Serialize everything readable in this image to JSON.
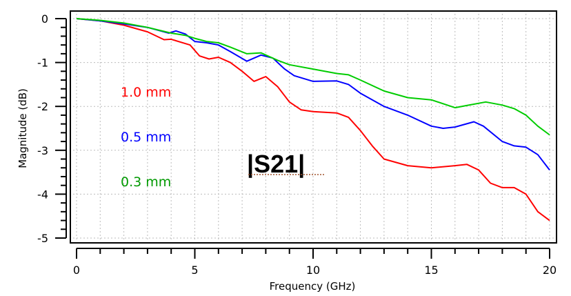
{
  "chart_data": {
    "type": "line",
    "title": "",
    "xlabel": "Frequency (GHz)",
    "ylabel": "Magnitude (dB)",
    "xlim": [
      0,
      20
    ],
    "ylim": [
      -5,
      0
    ],
    "xticks": [
      "0",
      "5",
      "10",
      "15",
      "20"
    ],
    "yticks": [
      "0",
      "-1",
      "-2",
      "-3",
      "-4",
      "-5"
    ],
    "grid": true,
    "annotation": "|S21|",
    "series": [
      {
        "name": "1.0 mm",
        "color": "#ff0000",
        "x": [
          0,
          1,
          2,
          3,
          3.7,
          4,
          4.8,
          5.2,
          5.6,
          6,
          6.5,
          7,
          7.5,
          8,
          8.5,
          9,
          9.5,
          10,
          11,
          11.5,
          12,
          12.5,
          13,
          14,
          15,
          16,
          16.5,
          17,
          17.5,
          18,
          18.5,
          19,
          19.5,
          20
        ],
        "y": [
          0,
          -0.05,
          -0.15,
          -0.3,
          -0.48,
          -0.47,
          -0.6,
          -0.85,
          -0.92,
          -0.88,
          -1.0,
          -1.2,
          -1.43,
          -1.32,
          -1.55,
          -1.9,
          -2.08,
          -2.12,
          -2.15,
          -2.25,
          -2.55,
          -2.9,
          -3.2,
          -3.35,
          -3.4,
          -3.35,
          -3.32,
          -3.45,
          -3.75,
          -3.85,
          -3.85,
          -4.0,
          -4.4,
          -4.6
        ]
      },
      {
        "name": "0.5 mm",
        "color": "#0000ff",
        "x": [
          0,
          1,
          2,
          3,
          3.9,
          4.2,
          4.6,
          5,
          5.5,
          6,
          6.5,
          7.2,
          7.8,
          8.3,
          8.8,
          9.2,
          10,
          11,
          11.5,
          12,
          13,
          14,
          15,
          15.5,
          16,
          16.8,
          17.2,
          18,
          18.5,
          19,
          19.5,
          20
        ],
        "y": [
          0,
          -0.05,
          -0.12,
          -0.2,
          -0.33,
          -0.28,
          -0.35,
          -0.52,
          -0.55,
          -0.6,
          -0.75,
          -0.97,
          -0.83,
          -0.9,
          -1.15,
          -1.3,
          -1.43,
          -1.42,
          -1.5,
          -1.7,
          -2.0,
          -2.2,
          -2.45,
          -2.5,
          -2.47,
          -2.35,
          -2.45,
          -2.8,
          -2.9,
          -2.93,
          -3.1,
          -3.45
        ]
      },
      {
        "name": "0.3 mm",
        "color": "#00cc00",
        "x": [
          0,
          1,
          2,
          3,
          4,
          4.6,
          5,
          5.5,
          6,
          6.5,
          7.2,
          7.8,
          8.5,
          9,
          10,
          11,
          11.5,
          12,
          13,
          14,
          15,
          16,
          16.5,
          17.3,
          18,
          18.5,
          19,
          19.5,
          20
        ],
        "y": [
          0,
          -0.04,
          -0.1,
          -0.2,
          -0.33,
          -0.38,
          -0.45,
          -0.52,
          -0.55,
          -0.65,
          -0.8,
          -0.78,
          -0.95,
          -1.05,
          -1.15,
          -1.25,
          -1.28,
          -1.4,
          -1.65,
          -1.8,
          -1.85,
          -2.03,
          -1.98,
          -1.9,
          -1.97,
          -2.05,
          -2.2,
          -2.45,
          -2.65
        ]
      }
    ]
  },
  "legend_label_colors": {
    "1.0 mm": "#ff0000",
    "0.5 mm": "#0000ff",
    "0.3 mm": "#009900"
  }
}
